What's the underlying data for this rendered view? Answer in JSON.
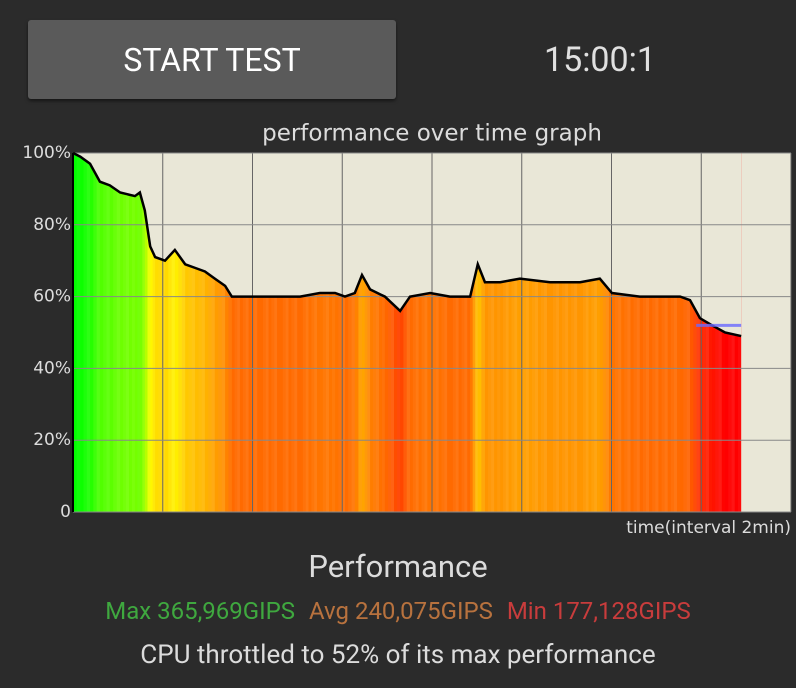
{
  "app": {
    "button": "START TEST",
    "timer": "15:00:1"
  },
  "chart_data": {
    "type": "area",
    "title": "performance over time graph",
    "x_label": "time(interval 2min)",
    "x": [
      0,
      0.16,
      0.38,
      0.6,
      0.82,
      1.05,
      1.38,
      1.49,
      1.6,
      1.72,
      1.83,
      2.05,
      2.27,
      2.5,
      2.72,
      2.94,
      3.16,
      3.39,
      3.54,
      3.72,
      4.17,
      4.61,
      5.06,
      5.5,
      5.84,
      6.06,
      6.28,
      6.44,
      6.62,
      6.95,
      7.29,
      7.51,
      7.96,
      8.4,
      8.85,
      9.02,
      9.18,
      9.52,
      9.96,
      10.63,
      11.3,
      11.74,
      12.01,
      12.63,
      13.53,
      13.75,
      13.97,
      14.24,
      14.53,
      14.89
    ],
    "values": [
      100,
      99,
      97,
      92,
      91,
      89,
      88,
      89,
      84,
      74,
      71,
      70,
      73,
      69,
      68,
      67,
      65,
      63,
      60,
      60,
      60,
      60,
      60,
      61,
      61,
      60,
      61,
      66,
      62,
      60,
      56,
      60,
      61,
      60,
      60,
      69,
      64,
      64,
      65,
      64,
      64,
      65,
      61,
      60,
      60,
      59,
      54,
      52,
      50,
      49
    ],
    "throttle_marker": 52,
    "marker_color": "#6a6aff",
    "xlim": [
      0,
      16
    ],
    "xticks": [
      2,
      4,
      6,
      8,
      10,
      12,
      14,
      16
    ],
    "ylim": [
      0,
      100
    ],
    "yticks": [
      0,
      {
        "value": 20,
        "label": "20%"
      },
      {
        "value": 40,
        "label": "40%"
      },
      {
        "value": 60,
        "label": "60%"
      },
      {
        "value": 80,
        "label": "80%"
      },
      {
        "value": 100,
        "label": "100%"
      }
    ],
    "grid": true,
    "line_color": "#000000",
    "plot_background": "#e9e7d7"
  },
  "stats": {
    "heading": "Performance",
    "max": "Max 365,969GIPS",
    "avg": "Avg 240,075GIPS",
    "min": "Min 177,128GIPS",
    "summary": "CPU throttled to 52% of its max performance"
  }
}
